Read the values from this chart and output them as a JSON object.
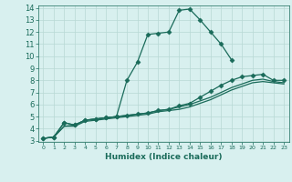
{
  "xlabel": "Humidex (Indice chaleur)",
  "x_values": [
    0,
    1,
    2,
    3,
    4,
    5,
    6,
    7,
    8,
    9,
    10,
    11,
    12,
    13,
    14,
    15,
    16,
    17,
    18,
    19,
    20,
    21,
    22,
    23
  ],
  "line1": [
    3.2,
    3.3,
    4.5,
    4.3,
    4.7,
    4.8,
    4.9,
    5.0,
    8.0,
    9.5,
    11.8,
    11.9,
    12.0,
    13.8,
    13.9,
    13.0,
    12.0,
    11.0,
    9.7,
    null,
    null,
    null,
    null,
    null
  ],
  "line2": [
    3.2,
    3.3,
    4.5,
    4.3,
    4.7,
    4.8,
    4.9,
    5.0,
    5.1,
    5.2,
    5.3,
    5.5,
    5.6,
    5.9,
    6.1,
    6.6,
    7.1,
    7.6,
    8.0,
    8.3,
    8.4,
    8.5,
    8.0,
    8.0
  ],
  "line3": [
    3.2,
    3.3,
    4.2,
    4.3,
    4.7,
    4.8,
    4.9,
    5.0,
    5.1,
    5.2,
    5.3,
    5.5,
    5.6,
    5.8,
    6.0,
    6.3,
    6.6,
    7.0,
    7.4,
    7.7,
    8.0,
    8.1,
    7.9,
    7.8
  ],
  "line4": [
    3.2,
    3.3,
    4.2,
    4.2,
    4.6,
    4.7,
    4.8,
    4.9,
    5.0,
    5.1,
    5.2,
    5.4,
    5.5,
    5.6,
    5.8,
    6.1,
    6.4,
    6.8,
    7.2,
    7.5,
    7.8,
    7.9,
    7.8,
    7.7
  ],
  "line_color": "#1a6b5a",
  "bg_color": "#d8f0ef",
  "grid_color": "#b8d8d4",
  "ylim": [
    3,
    14
  ],
  "xlim": [
    0,
    23
  ],
  "yticks": [
    3,
    4,
    5,
    6,
    7,
    8,
    9,
    10,
    11,
    12,
    13,
    14
  ],
  "xticks": [
    0,
    1,
    2,
    3,
    4,
    5,
    6,
    7,
    8,
    9,
    10,
    11,
    12,
    13,
    14,
    15,
    16,
    17,
    18,
    19,
    20,
    21,
    22,
    23
  ]
}
